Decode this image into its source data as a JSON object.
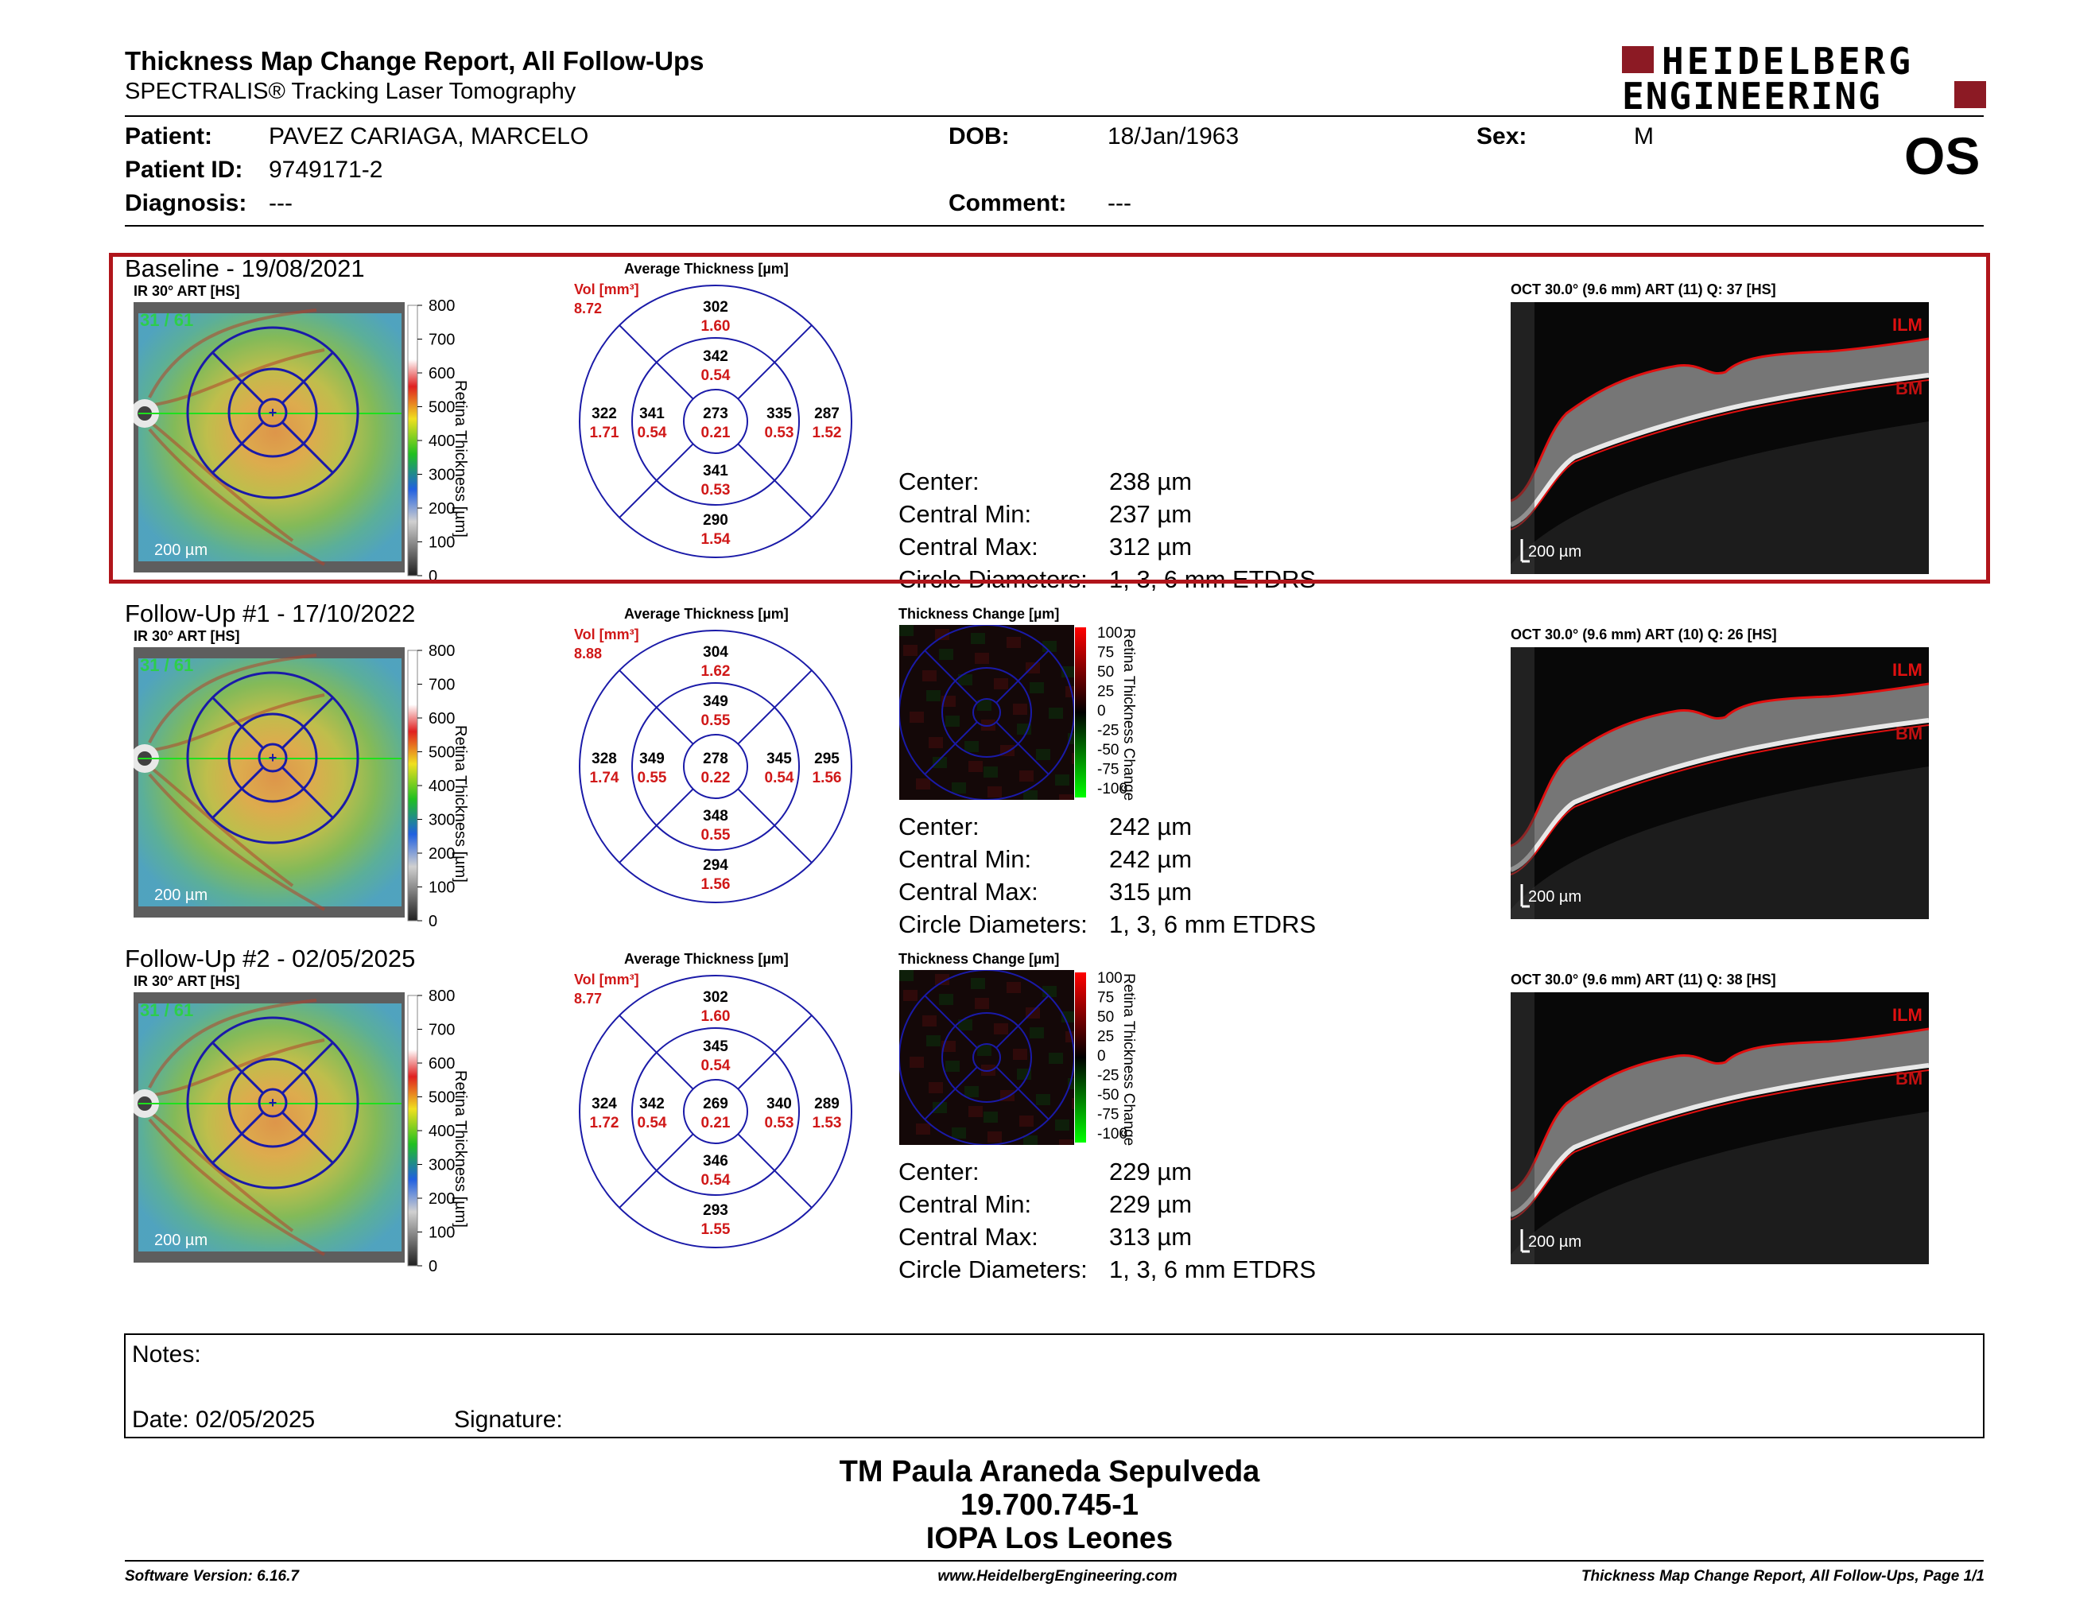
{
  "header": {
    "report_title": "Thickness Map Change Report, All Follow-Ups",
    "device": "SPECTRALIS® Tracking Laser Tomography",
    "logo_line1": "HEIDELBERG",
    "logo_line2": "ENGINEERING",
    "eye": "OS"
  },
  "patient": {
    "patient_label": "Patient:",
    "patient_value": "PAVEZ CARIAGA, MARCELO",
    "id_label": "Patient ID:",
    "id_value": "9749171-2",
    "diagnosis_label": "Diagnosis:",
    "diagnosis_value": "---",
    "dob_label": "DOB:",
    "dob_value": "18/Jan/1963",
    "comment_label": "Comment:",
    "comment_value": "---",
    "sex_label": "Sex:",
    "sex_value": "M"
  },
  "common": {
    "avg_title": "Average Thickness [µm]",
    "vol_label": "Vol [mm³]",
    "change_title": "Thickness Change [µm]",
    "ir_label": "IR 30° ART [HS]",
    "scale_bar": "200 µm",
    "scan_counter": "31 / 61",
    "colorbar_title": "Retina Thickness [µm]",
    "change_bar_title": "Retina Thickness Change",
    "colorbar_ticks": [
      "800",
      "700",
      "600",
      "500",
      "400",
      "300",
      "200",
      "100",
      "0"
    ],
    "change_ticks": [
      "100",
      "75",
      "50",
      "25",
      "0",
      "-25",
      "-50",
      "-75",
      "-100"
    ],
    "ilm": "ILM",
    "bm": "BM",
    "stat_center": "Center:",
    "stat_min": "Central Min:",
    "stat_max": "Central Max:",
    "stat_circle": "Circle Diameters:",
    "circle_value": "1, 3, 6 mm ETDRS"
  },
  "visits": [
    {
      "title": "Baseline - 19/08/2021",
      "oct_label": "OCT 30.0° (9.6 mm) ART (11) Q: 37 [HS]",
      "vol_total": "8.72",
      "sectors": {
        "center": [
          "273",
          "0.21"
        ],
        "inner_sup": [
          "342",
          "0.54"
        ],
        "inner_inf": [
          "341",
          "0.53"
        ],
        "inner_left": [
          "341",
          "0.54"
        ],
        "inner_right": [
          "335",
          "0.53"
        ],
        "outer_sup": [
          "302",
          "1.60"
        ],
        "outer_inf": [
          "290",
          "1.54"
        ],
        "outer_left": [
          "322",
          "1.71"
        ],
        "outer_right": [
          "287",
          "1.52"
        ]
      },
      "stats": {
        "center": "238 µm",
        "min": "237 µm",
        "max": "312 µm"
      }
    },
    {
      "title": "Follow-Up #1 - 17/10/2022",
      "oct_label": "OCT 30.0° (9.6 mm) ART (10) Q: 26 [HS]",
      "vol_total": "8.88",
      "sectors": {
        "center": [
          "278",
          "0.22"
        ],
        "inner_sup": [
          "349",
          "0.55"
        ],
        "inner_inf": [
          "348",
          "0.55"
        ],
        "inner_left": [
          "349",
          "0.55"
        ],
        "inner_right": [
          "345",
          "0.54"
        ],
        "outer_sup": [
          "304",
          "1.62"
        ],
        "outer_inf": [
          "294",
          "1.56"
        ],
        "outer_left": [
          "328",
          "1.74"
        ],
        "outer_right": [
          "295",
          "1.56"
        ]
      },
      "stats": {
        "center": "242 µm",
        "min": "242 µm",
        "max": "315 µm"
      }
    },
    {
      "title": "Follow-Up #2 - 02/05/2025",
      "oct_label": "OCT 30.0° (9.6 mm) ART (11) Q: 38 [HS]",
      "vol_total": "8.77",
      "sectors": {
        "center": [
          "269",
          "0.21"
        ],
        "inner_sup": [
          "345",
          "0.54"
        ],
        "inner_inf": [
          "346",
          "0.54"
        ],
        "inner_left": [
          "342",
          "0.54"
        ],
        "inner_right": [
          "340",
          "0.53"
        ],
        "outer_sup": [
          "302",
          "1.60"
        ],
        "outer_inf": [
          "293",
          "1.55"
        ],
        "outer_left": [
          "324",
          "1.72"
        ],
        "outer_right": [
          "289",
          "1.53"
        ]
      },
      "stats": {
        "center": "229 µm",
        "min": "229 µm",
        "max": "313 µm"
      }
    }
  ],
  "notes": {
    "notes_label": "Notes:",
    "date_label": "Date: 02/05/2025",
    "signature_label": "Signature:"
  },
  "signature": {
    "name": "TM Paula Araneda Sepulveda",
    "rut": "19.700.745-1",
    "institution": "IOPA Los Leones"
  },
  "footer": {
    "software": "Software Version: 6.16.7",
    "website": "www.HeidelbergEngineering.com",
    "page": "Thickness Map Change Report, All Follow-Ups, Page 1/1"
  },
  "colors": {
    "highlight_border": "#b0151b",
    "logo_red": "#8c1a24",
    "grid_blue": "#1a1aa8",
    "vol_red": "#d01818",
    "ilm_red": "#e01010"
  }
}
